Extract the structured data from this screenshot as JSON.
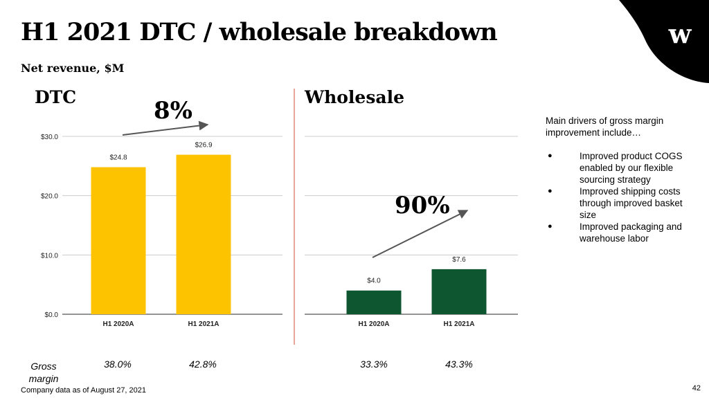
{
  "title": "H1 2021 DTC / wholesale breakdown",
  "subtitle": "Net revenue, $M",
  "logo_text": "w",
  "dtc_title": "DTC",
  "wholesale_title": "Wholesale",
  "growth_dtc": "8%",
  "growth_wholesale": "90%",
  "drivers": {
    "intro": "Main drivers of gross margin improvement include…",
    "items": [
      "Improved product COGS enabled by our flexible sourcing strategy",
      "Improved shipping costs through improved basket size",
      "Improved packaging and warehouse labor"
    ]
  },
  "gross_margin_label": "Gross margin",
  "gross_margins": [
    "38.0%",
    "42.8%",
    "33.3%",
    "43.3%"
  ],
  "footnote": "Company data as of August 27, 2021",
  "page_number": "42",
  "colors": {
    "dtc_bar": "#fdc300",
    "wholesale_bar": "#0d5630",
    "divider": "#e8a796",
    "arrow": "#555555"
  },
  "chart_data": [
    {
      "type": "bar",
      "name": "DTC",
      "categories": [
        "H1 2020A",
        "H1 2021A"
      ],
      "values": [
        24.8,
        26.9
      ],
      "data_labels": [
        "$24.8",
        "$26.9"
      ],
      "yticks": [
        "$0.0",
        "$10.0",
        "$20.0",
        "$30.0"
      ],
      "ylim": [
        0,
        30
      ],
      "grid": true,
      "color": "#fdc300"
    },
    {
      "type": "bar",
      "name": "Wholesale",
      "categories": [
        "H1 2020A",
        "H1 2021A"
      ],
      "values": [
        4.0,
        7.6
      ],
      "data_labels": [
        "$4.0",
        "$7.6"
      ],
      "yticks": [],
      "ylim": [
        0,
        30
      ],
      "grid": true,
      "color": "#0d5630"
    }
  ]
}
